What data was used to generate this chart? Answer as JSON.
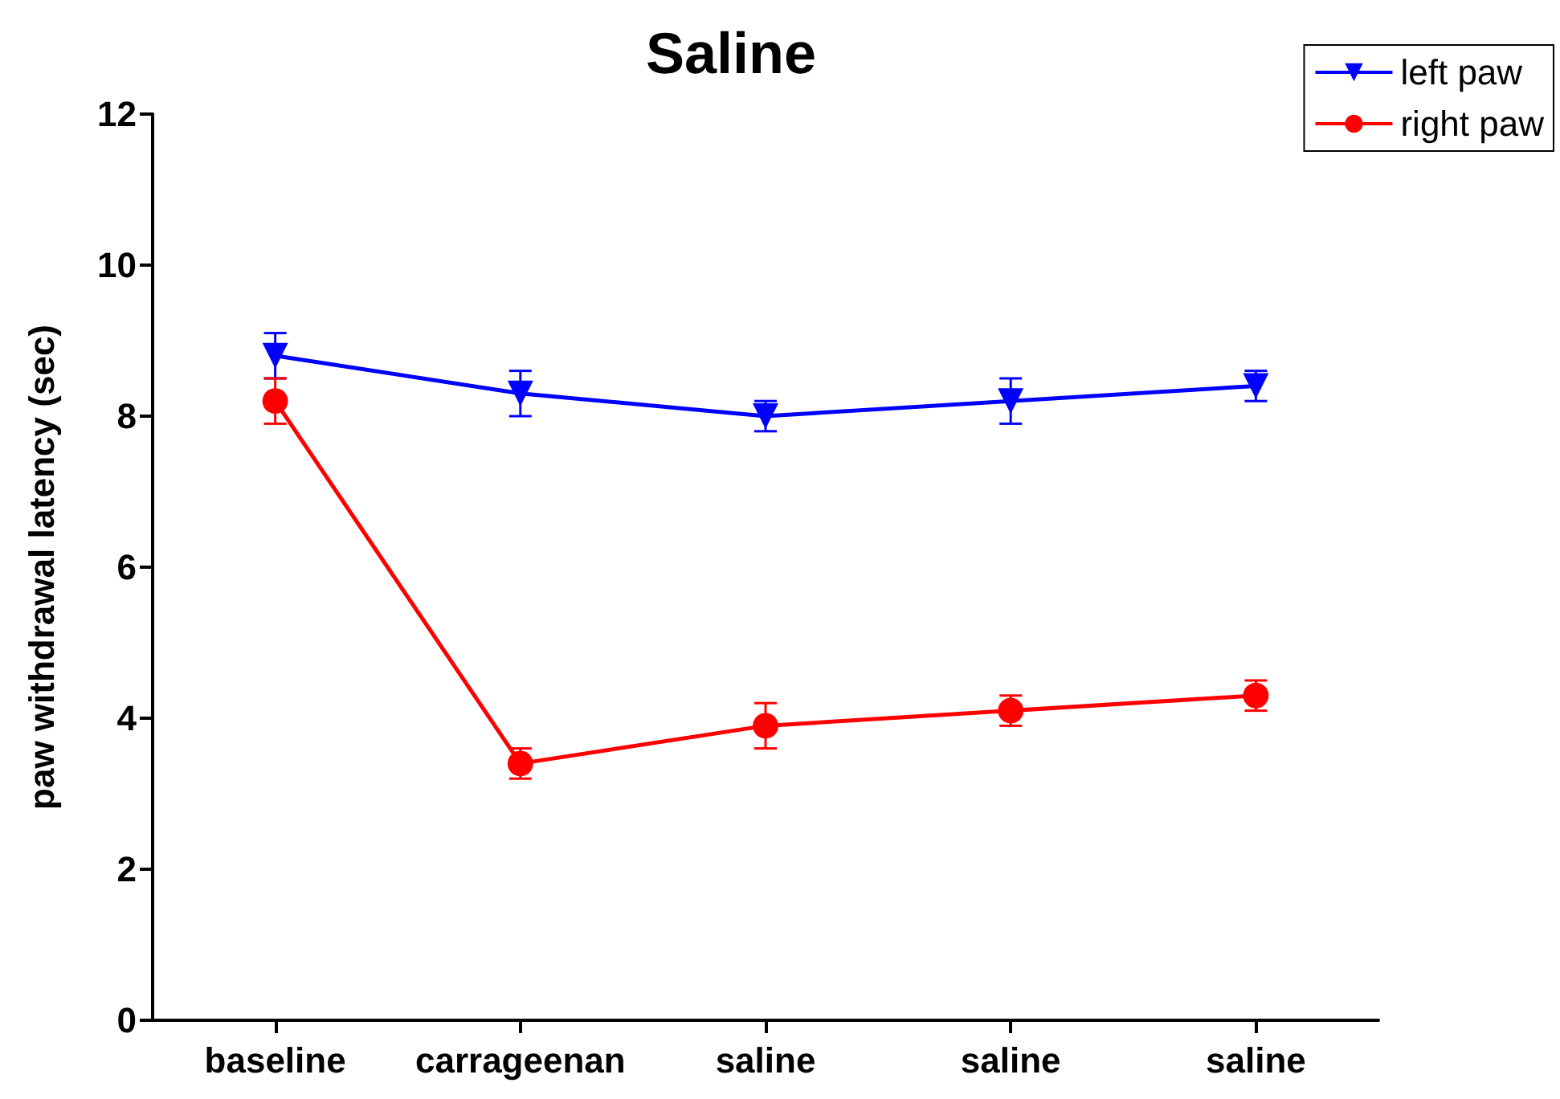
{
  "chart_data": {
    "type": "line",
    "title": "Saline",
    "ylabel": "paw withdrawal latency (sec)",
    "categories": [
      "baseline",
      "carrageenan",
      "saline",
      "saline",
      "saline"
    ],
    "series": [
      {
        "name": "left paw",
        "color": "#0000ff",
        "marker": "triangle",
        "values": [
          8.8,
          8.3,
          8.0,
          8.2,
          8.4
        ],
        "errors": [
          0.3,
          0.3,
          0.2,
          0.3,
          0.2
        ]
      },
      {
        "name": "right paw",
        "color": "#ff0000",
        "marker": "circle",
        "values": [
          8.2,
          3.4,
          3.9,
          4.1,
          4.3
        ],
        "errors": [
          0.3,
          0.2,
          0.3,
          0.2,
          0.2
        ]
      }
    ],
    "ylim": [
      0,
      12
    ],
    "yticks": [
      0,
      2,
      4,
      6,
      8,
      10,
      12
    ],
    "grid": false,
    "legend": "top right",
    "line_style": "solid"
  }
}
